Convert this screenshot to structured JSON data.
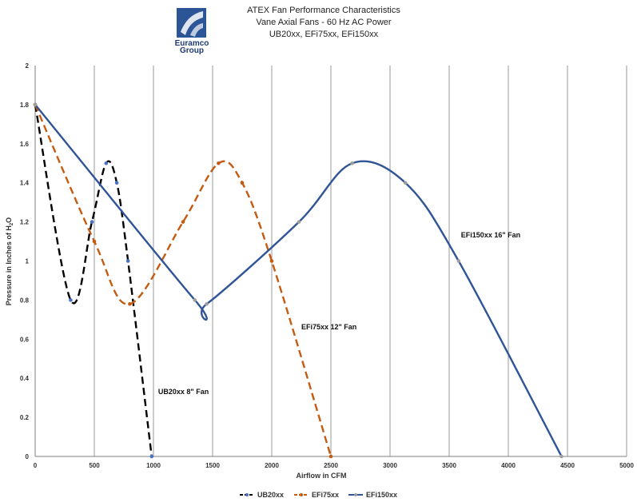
{
  "logo": {
    "name": "euramco-group-logo",
    "text_1": "Euramco",
    "text_2": "Group",
    "color": "#2b5597"
  },
  "chart_data": {
    "type": "line",
    "title_lines": [
      "ATEX Fan Performance Characteristics",
      "Vane Axial Fans - 60 Hz AC Power",
      "UB20xx, EFi75xx, EFi150xx"
    ],
    "xlabel": "Airflow in CFM",
    "ylabel_parts": [
      "Pressure in Inches of H",
      "2",
      "O"
    ],
    "xlim": [
      0,
      5000
    ],
    "ylim": [
      0,
      2
    ],
    "x_ticks": [
      "0",
      "500",
      "1000",
      "1500",
      "2000",
      "2500",
      "3000",
      "3500",
      "4000",
      "4500",
      "5000"
    ],
    "y_ticks": [
      "0",
      "0.2",
      "0.4",
      "0.6",
      "0.8",
      "1",
      "1.2",
      "1.4",
      "1.6",
      "1.8",
      "2"
    ],
    "grid": {
      "vertical": true,
      "horizontal": false
    },
    "legend_position": "bottom",
    "series": [
      {
        "name": "UB20xx",
        "color": "#000000",
        "marker_color": "#4a72c4",
        "dash": "dashed",
        "x": [
          0,
          300,
          480,
          600,
          690,
          785,
          985
        ],
        "y": [
          1.8,
          0.8,
          1.2,
          1.5,
          1.4,
          1.0,
          0.0
        ]
      },
      {
        "name": "EFi75xx",
        "color": "#c55a11",
        "marker_color": "#c55a11",
        "dash": "dashed",
        "x": [
          0,
          500,
          800,
          1250,
          1550,
          1750,
          2000,
          2500
        ],
        "y": [
          1.8,
          1.1,
          0.78,
          1.2,
          1.5,
          1.4,
          1.0,
          0.0
        ]
      },
      {
        "name": "EFi150xx",
        "color": "#2f5597",
        "marker_color": "#9e9e9e",
        "dash": "solid",
        "x": [
          0,
          1350,
          1450,
          2230,
          2680,
          3130,
          3580,
          4450
        ],
        "y": [
          1.8,
          0.8,
          0.78,
          1.2,
          1.5,
          1.4,
          1.0,
          0.0
        ]
      }
    ],
    "annotations": [
      {
        "text": "UB20xx 8\" Fan",
        "x": 1040,
        "y": 0.32
      },
      {
        "text": "EFi75xx 12\" Fan",
        "x": 2250,
        "y": 0.65
      },
      {
        "text": "EFi150xx 16\" Fan",
        "x": 3600,
        "y": 1.12
      }
    ]
  }
}
